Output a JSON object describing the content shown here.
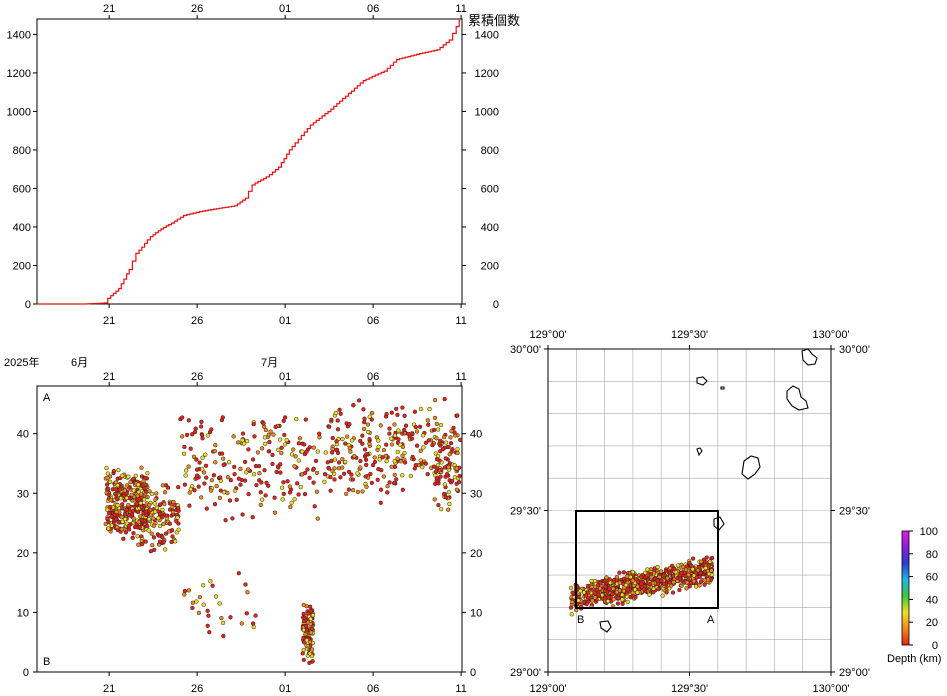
{
  "chart_data": [
    {
      "type": "line",
      "ylabel": "累積個数",
      "x_ticks": [
        "21",
        "26",
        "01",
        "06",
        "11"
      ],
      "y_ticks": [
        "0",
        "200",
        "400",
        "600",
        "800",
        "1000",
        "1200",
        "1400"
      ],
      "ylim": [
        0,
        1480
      ],
      "grid": false,
      "x_day": [
        16.9,
        19.6,
        20.8,
        21.0,
        21.6,
        22.2,
        22.6,
        23.4,
        24.0,
        24.6,
        25.3,
        26.2,
        27.5,
        28.2,
        28.8,
        29.2,
        30.0,
        30.7,
        31.3,
        32.5,
        33.5,
        34.5,
        35.5,
        36.7,
        37.4,
        38.7,
        39.7,
        40.4,
        40.8,
        40.95
      ],
      "y_count": [
        0,
        0,
        5,
        30,
        80,
        180,
        260,
        350,
        390,
        420,
        460,
        480,
        500,
        510,
        550,
        620,
        660,
        710,
        800,
        930,
        1000,
        1080,
        1160,
        1210,
        1270,
        1300,
        1320,
        1370,
        1440,
        1470
      ]
    },
    {
      "type": "scatter",
      "title_left": "2025年",
      "month_labels": [
        "6月",
        "7月"
      ],
      "x_ticks": [
        "21",
        "26",
        "01",
        "06",
        "11"
      ],
      "y_ticks": [
        "0",
        "10",
        "20",
        "30",
        "40"
      ],
      "ylim": [
        0,
        48
      ],
      "y_inverted": false,
      "corner_labels": [
        "A",
        "B"
      ],
      "grid": false,
      "clusters": [
        {
          "x": [
            20.8,
            23.2
          ],
          "y": [
            22,
            35
          ],
          "n": 320
        },
        {
          "x": [
            22.6,
            25.0
          ],
          "y": [
            20,
            32
          ],
          "n": 140
        },
        {
          "x": [
            25.0,
            33.5
          ],
          "y": [
            25,
            44
          ],
          "n": 220
        },
        {
          "x": [
            33.5,
            40.8
          ],
          "y": [
            28,
            46
          ],
          "n": 260
        },
        {
          "x": [
            39.5,
            41.0
          ],
          "y": [
            26,
            42
          ],
          "n": 60
        },
        {
          "x": [
            32.0,
            32.6
          ],
          "y": [
            1,
            12
          ],
          "n": 90
        },
        {
          "x": [
            25.0,
            29.5
          ],
          "y": [
            5,
            18
          ],
          "n": 30
        }
      ]
    },
    {
      "type": "scatter",
      "subtype": "map",
      "x_ticks": [
        "129°00'",
        "129°30'",
        "130°00'"
      ],
      "y_ticks": [
        "29°00'",
        "29°30'",
        "30°00'"
      ],
      "xlim": [
        129.0,
        130.0
      ],
      "ylim": [
        29.0,
        30.0
      ],
      "box_labels": [
        "B",
        "A"
      ],
      "box": {
        "lon": [
          129.083,
          129.583
        ],
        "lat": [
          29.2,
          29.5
        ]
      },
      "clusters": [
        {
          "lon": [
            129.08,
            129.22
          ],
          "lat": [
            29.21,
            29.28
          ],
          "n": 180
        },
        {
          "lon": [
            129.2,
            129.58
          ],
          "lat": [
            29.22,
            29.36
          ],
          "n": 650
        }
      ],
      "colorbar": {
        "label": "Depth (km)",
        "ticks": [
          "0",
          "20",
          "40",
          "60",
          "80",
          "100"
        ],
        "colors": [
          "#e8231c",
          "#f08a1a",
          "#f0e020",
          "#3ec43e",
          "#20b6e6",
          "#2b3fd4",
          "#8a1ed8",
          "#e01ee0"
        ]
      }
    }
  ]
}
